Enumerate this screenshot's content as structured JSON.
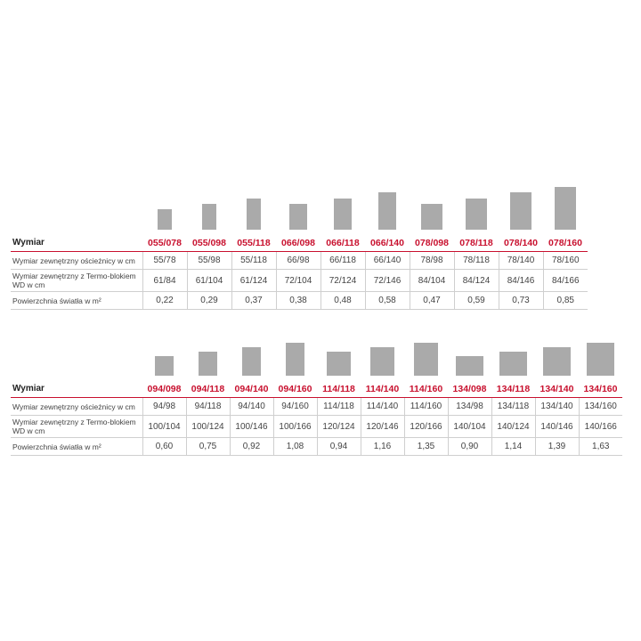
{
  "tables": [
    {
      "header_label": "Wymiar",
      "sizes": [
        "055/078",
        "055/098",
        "055/118",
        "066/098",
        "066/118",
        "066/140",
        "078/098",
        "078/118",
        "078/140",
        "078/160"
      ],
      "rows": [
        {
          "label": "Wymiar zewnętrzny ościeżnicy w cm",
          "values": [
            "55/78",
            "55/98",
            "55/118",
            "66/98",
            "66/118",
            "66/140",
            "78/98",
            "78/118",
            "78/140",
            "78/160"
          ]
        },
        {
          "label": "Wymiar zewnętrzny z Termo-blokiem WD w cm",
          "values": [
            "61/84",
            "61/104",
            "61/124",
            "72/104",
            "72/124",
            "72/146",
            "84/104",
            "84/124",
            "84/146",
            "84/166"
          ]
        },
        {
          "label": "Powierzchnia światła w m²",
          "values": [
            "0,22",
            "0,29",
            "0,37",
            "0,38",
            "0,48",
            "0,58",
            "0,47",
            "0,59",
            "0,73",
            "0,85"
          ]
        }
      ]
    },
    {
      "header_label": "Wymiar",
      "sizes": [
        "094/098",
        "094/118",
        "094/140",
        "094/160",
        "114/118",
        "114/140",
        "114/160",
        "134/098",
        "134/118",
        "134/140",
        "134/160"
      ],
      "rows": [
        {
          "label": "Wymiar zewnętrzny ościeżnicy w cm",
          "values": [
            "94/98",
            "94/118",
            "94/140",
            "94/160",
            "114/118",
            "114/140",
            "114/160",
            "134/98",
            "134/118",
            "134/140",
            "134/160"
          ]
        },
        {
          "label": "Wymiar zewnętrzny z Termo-blokiem WD w cm",
          "values": [
            "100/104",
            "100/124",
            "100/146",
            "100/166",
            "120/124",
            "120/146",
            "120/166",
            "140/104",
            "140/124",
            "140/146",
            "140/166"
          ]
        },
        {
          "label": "Powierzchnia światła w m²",
          "values": [
            "0,60",
            "0,75",
            "0,92",
            "1,08",
            "0,94",
            "1,16",
            "1,35",
            "0,90",
            "1,14",
            "1,39",
            "1,63"
          ]
        }
      ]
    }
  ],
  "colors": {
    "accent": "#c8102e",
    "shape": "#aaaaaa",
    "grid": "#cfcfcf"
  }
}
